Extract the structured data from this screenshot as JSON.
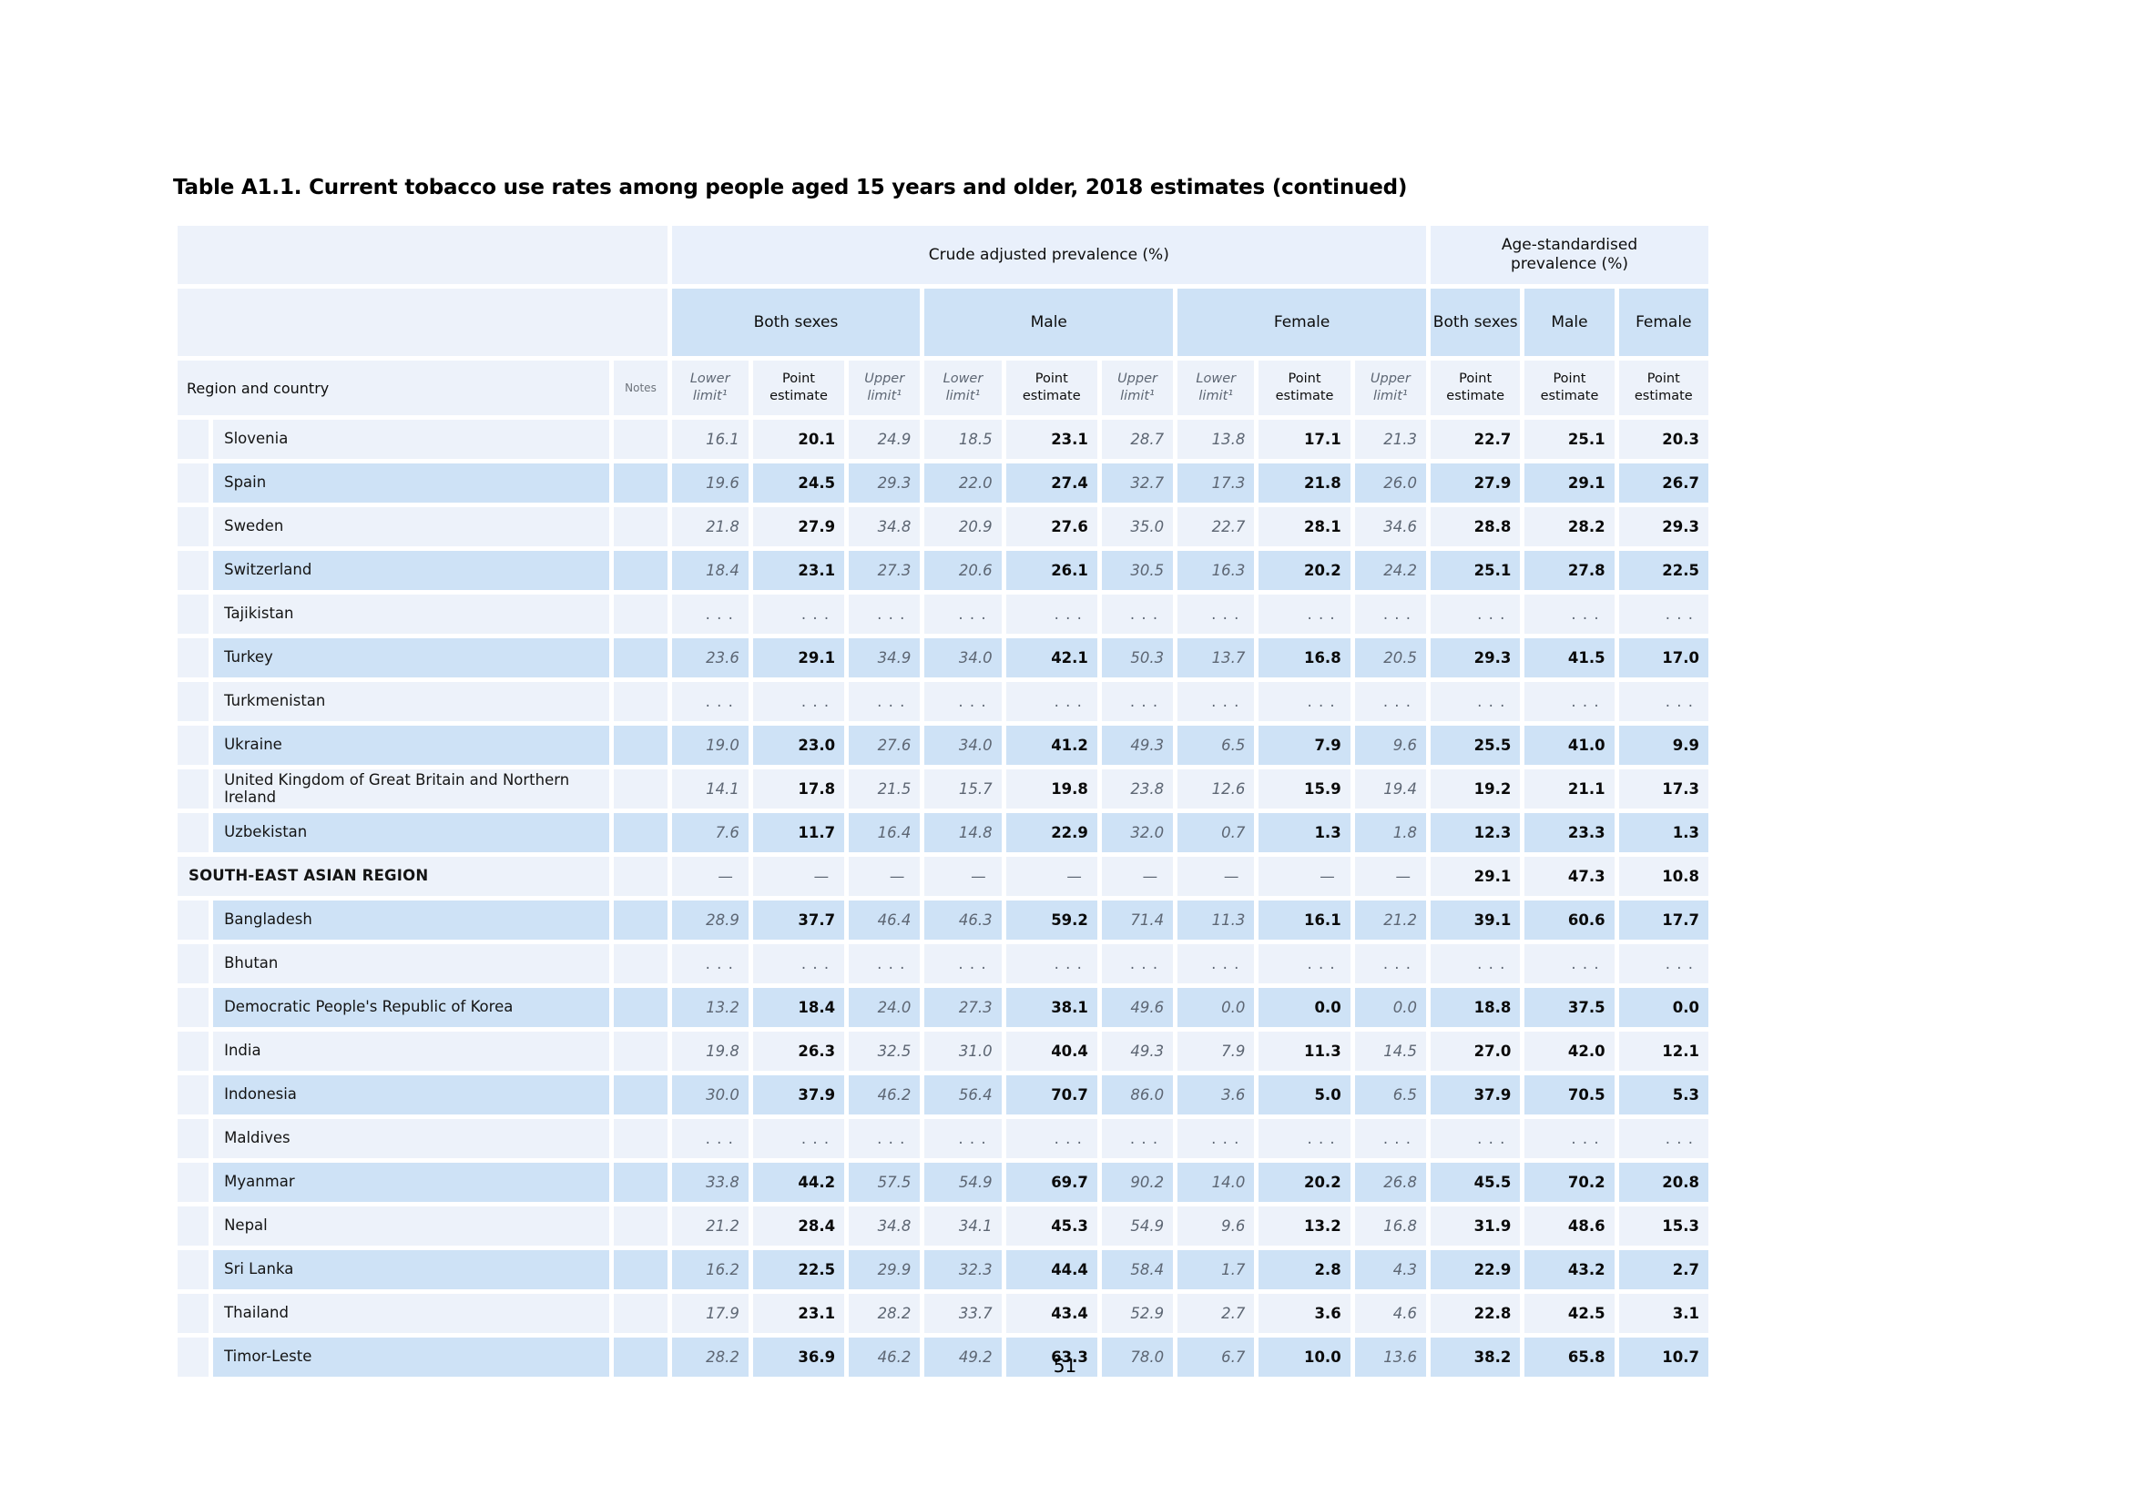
{
  "page": {
    "title": "Table A1.1. Current tobacco use rates among people aged 15 years and older, 2018 estimates (continued)",
    "page_number": "51"
  },
  "table": {
    "header": {
      "crude_label": "Crude adjusted prevalence (%)",
      "age_std_label": "Age-standardised\nprevalence (%)",
      "groups": [
        "Both sexes",
        "Male",
        "Female"
      ],
      "region_col": "Region and country",
      "notes_col": "Notes",
      "lower": "Lower limit¹",
      "point": "Point estimate",
      "upper": "Upper limit¹"
    },
    "rows": [
      {
        "name": "Slovenia",
        "type": "country",
        "shade": "light",
        "values": [
          "16.1",
          "20.1",
          "24.9",
          "18.5",
          "23.1",
          "28.7",
          "13.8",
          "17.1",
          "21.3",
          "22.7",
          "25.1",
          "20.3"
        ]
      },
      {
        "name": "Spain",
        "type": "country",
        "shade": "blue",
        "values": [
          "19.6",
          "24.5",
          "29.3",
          "22.0",
          "27.4",
          "32.7",
          "17.3",
          "21.8",
          "26.0",
          "27.9",
          "29.1",
          "26.7"
        ]
      },
      {
        "name": "Sweden",
        "type": "country",
        "shade": "light",
        "values": [
          "21.8",
          "27.9",
          "34.8",
          "20.9",
          "27.6",
          "35.0",
          "22.7",
          "28.1",
          "34.6",
          "28.8",
          "28.2",
          "29.3"
        ]
      },
      {
        "name": "Switzerland",
        "type": "country",
        "shade": "blue",
        "values": [
          "18.4",
          "23.1",
          "27.3",
          "20.6",
          "26.1",
          "30.5",
          "16.3",
          "20.2",
          "24.2",
          "25.1",
          "27.8",
          "22.5"
        ]
      },
      {
        "name": "Tajikistan",
        "type": "country",
        "shade": "light",
        "values": [
          ". . .",
          ". . .",
          ". . .",
          ". . .",
          ". . .",
          ". . .",
          ". . .",
          ". . .",
          ". . .",
          ". . .",
          ". . .",
          ". . ."
        ]
      },
      {
        "name": "Turkey",
        "type": "country",
        "shade": "blue",
        "values": [
          "23.6",
          "29.1",
          "34.9",
          "34.0",
          "42.1",
          "50.3",
          "13.7",
          "16.8",
          "20.5",
          "29.3",
          "41.5",
          "17.0"
        ]
      },
      {
        "name": "Turkmenistan",
        "type": "country",
        "shade": "light",
        "values": [
          ". . .",
          ". . .",
          ". . .",
          ". . .",
          ". . .",
          ". . .",
          ". . .",
          ". . .",
          ". . .",
          ". . .",
          ". . .",
          ". . ."
        ]
      },
      {
        "name": "Ukraine",
        "type": "country",
        "shade": "blue",
        "values": [
          "19.0",
          "23.0",
          "27.6",
          "34.0",
          "41.2",
          "49.3",
          "6.5",
          "7.9",
          "9.6",
          "25.5",
          "41.0",
          "9.9"
        ]
      },
      {
        "name": "United Kingdom of Great Britain and Northern Ireland",
        "type": "country",
        "shade": "light",
        "values": [
          "14.1",
          "17.8",
          "21.5",
          "15.7",
          "19.8",
          "23.8",
          "12.6",
          "15.9",
          "19.4",
          "19.2",
          "21.1",
          "17.3"
        ]
      },
      {
        "name": "Uzbekistan",
        "type": "country",
        "shade": "blue",
        "values": [
          "7.6",
          "11.7",
          "16.4",
          "14.8",
          "22.9",
          "32.0",
          "0.7",
          "1.3",
          "1.8",
          "12.3",
          "23.3",
          "1.3"
        ]
      },
      {
        "name": "SOUTH-EAST ASIAN REGION",
        "type": "region",
        "shade": "light",
        "values": [
          "—",
          "—",
          "—",
          "—",
          "—",
          "—",
          "—",
          "—",
          "—",
          "29.1",
          "47.3",
          "10.8"
        ]
      },
      {
        "name": "Bangladesh",
        "type": "country",
        "shade": "blue",
        "values": [
          "28.9",
          "37.7",
          "46.4",
          "46.3",
          "59.2",
          "71.4",
          "11.3",
          "16.1",
          "21.2",
          "39.1",
          "60.6",
          "17.7"
        ]
      },
      {
        "name": "Bhutan",
        "type": "country",
        "shade": "light",
        "values": [
          ". . .",
          ". . .",
          ". . .",
          ". . .",
          ". . .",
          ". . .",
          ". . .",
          ". . .",
          ". . .",
          ". . .",
          ". . .",
          ". . ."
        ]
      },
      {
        "name": "Democratic People's Republic of Korea",
        "type": "country",
        "shade": "blue",
        "values": [
          "13.2",
          "18.4",
          "24.0",
          "27.3",
          "38.1",
          "49.6",
          "0.0",
          "0.0",
          "0.0",
          "18.8",
          "37.5",
          "0.0"
        ]
      },
      {
        "name": "India",
        "type": "country",
        "shade": "light",
        "values": [
          "19.8",
          "26.3",
          "32.5",
          "31.0",
          "40.4",
          "49.3",
          "7.9",
          "11.3",
          "14.5",
          "27.0",
          "42.0",
          "12.1"
        ]
      },
      {
        "name": "Indonesia",
        "type": "country",
        "shade": "blue",
        "values": [
          "30.0",
          "37.9",
          "46.2",
          "56.4",
          "70.7",
          "86.0",
          "3.6",
          "5.0",
          "6.5",
          "37.9",
          "70.5",
          "5.3"
        ]
      },
      {
        "name": "Maldives",
        "type": "country",
        "shade": "light",
        "values": [
          ". . .",
          ". . .",
          ". . .",
          ". . .",
          ". . .",
          ". . .",
          ". . .",
          ". . .",
          ". . .",
          ". . .",
          ". . .",
          ". . ."
        ]
      },
      {
        "name": "Myanmar",
        "type": "country",
        "shade": "blue",
        "values": [
          "33.8",
          "44.2",
          "57.5",
          "54.9",
          "69.7",
          "90.2",
          "14.0",
          "20.2",
          "26.8",
          "45.5",
          "70.2",
          "20.8"
        ]
      },
      {
        "name": "Nepal",
        "type": "country",
        "shade": "light",
        "values": [
          "21.2",
          "28.4",
          "34.8",
          "34.1",
          "45.3",
          "54.9",
          "9.6",
          "13.2",
          "16.8",
          "31.9",
          "48.6",
          "15.3"
        ]
      },
      {
        "name": "Sri Lanka",
        "type": "country",
        "shade": "blue",
        "values": [
          "16.2",
          "22.5",
          "29.9",
          "32.3",
          "44.4",
          "58.4",
          "1.7",
          "2.8",
          "4.3",
          "22.9",
          "43.2",
          "2.7"
        ]
      },
      {
        "name": "Thailand",
        "type": "country",
        "shade": "light",
        "values": [
          "17.9",
          "23.1",
          "28.2",
          "33.7",
          "43.4",
          "52.9",
          "2.7",
          "3.6",
          "4.6",
          "22.8",
          "42.5",
          "3.1"
        ]
      },
      {
        "name": "Timor-Leste",
        "type": "country",
        "shade": "blue",
        "values": [
          "28.2",
          "36.9",
          "46.2",
          "49.2",
          "63.3",
          "78.0",
          "6.7",
          "10.0",
          "13.6",
          "38.2",
          "65.8",
          "10.7"
        ]
      }
    ]
  }
}
